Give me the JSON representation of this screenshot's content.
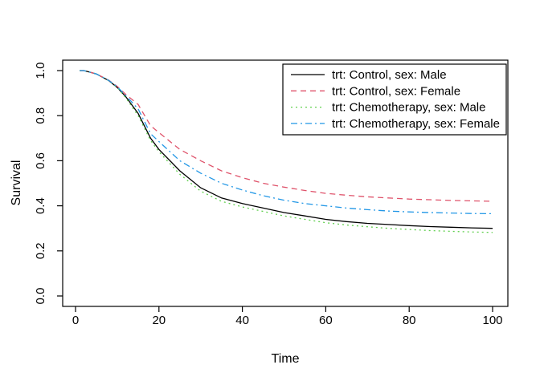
{
  "chart_data": {
    "type": "line",
    "title": "",
    "xlabel": "Time",
    "ylabel": "Survival",
    "xlim": [
      0,
      100
    ],
    "ylim": [
      0.0,
      1.0
    ],
    "grid": false,
    "legend_position": "topright",
    "xticks": [
      0,
      20,
      40,
      60,
      80,
      100
    ],
    "xtick_labels": [
      "0",
      "20",
      "40",
      "60",
      "80",
      "100"
    ],
    "yticks": [
      0.0,
      0.2,
      0.4,
      0.6,
      0.8,
      1.0
    ],
    "ytick_labels": [
      "0.0",
      "0.2",
      "0.4",
      "0.6",
      "0.8",
      "1.0"
    ],
    "x": [
      1,
      2,
      3,
      5,
      8,
      10,
      12,
      15,
      18,
      20,
      25,
      30,
      35,
      40,
      45,
      50,
      55,
      60,
      65,
      70,
      75,
      80,
      85,
      90,
      95,
      100
    ],
    "series": [
      {
        "name": "trt: Control, sex: Male",
        "color": "#000000",
        "linestyle": "solid",
        "values": [
          1.0,
          1.0,
          0.995,
          0.985,
          0.955,
          0.925,
          0.885,
          0.81,
          0.7,
          0.65,
          0.555,
          0.48,
          0.435,
          0.41,
          0.39,
          0.37,
          0.355,
          0.34,
          0.33,
          0.322,
          0.317,
          0.312,
          0.308,
          0.305,
          0.302,
          0.3
        ]
      },
      {
        "name": "trt: Control, sex: Female",
        "color": "#DF536B",
        "linestyle": "dashed",
        "values": [
          1.0,
          1.0,
          0.995,
          0.985,
          0.957,
          0.93,
          0.895,
          0.85,
          0.755,
          0.725,
          0.65,
          0.6,
          0.555,
          0.525,
          0.5,
          0.483,
          0.468,
          0.455,
          0.447,
          0.44,
          0.435,
          0.43,
          0.427,
          0.424,
          0.422,
          0.42
        ]
      },
      {
        "name": "trt: Chemotherapy, sex: Male",
        "color": "#61D04F",
        "linestyle": "dotted",
        "values": [
          1.0,
          1.0,
          0.995,
          0.985,
          0.955,
          0.925,
          0.88,
          0.8,
          0.69,
          0.64,
          0.54,
          0.465,
          0.42,
          0.395,
          0.375,
          0.355,
          0.34,
          0.325,
          0.315,
          0.307,
          0.3,
          0.295,
          0.29,
          0.287,
          0.284,
          0.282
        ]
      },
      {
        "name": "trt: Chemotherapy, sex: Female",
        "color": "#2297E6",
        "linestyle": "dashdot",
        "values": [
          1.0,
          1.0,
          0.995,
          0.985,
          0.956,
          0.928,
          0.89,
          0.83,
          0.72,
          0.685,
          0.6,
          0.545,
          0.5,
          0.47,
          0.445,
          0.425,
          0.41,
          0.4,
          0.39,
          0.383,
          0.377,
          0.373,
          0.37,
          0.368,
          0.366,
          0.365
        ]
      }
    ]
  }
}
